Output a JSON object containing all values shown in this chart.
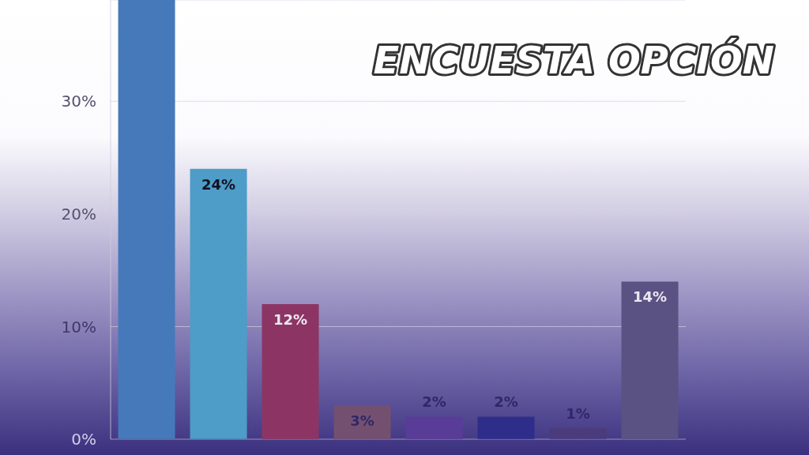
{
  "chart_data": {
    "type": "bar",
    "title": "ENCUESTA OPCIÓN",
    "categories": [
      null,
      null,
      null,
      null,
      null,
      null,
      null,
      null
    ],
    "values": [
      39,
      24,
      12,
      3,
      2,
      2,
      1,
      14
    ],
    "colors": [
      "#4679ba",
      "#4e9cc8",
      "#8c3564",
      "#745070",
      "#583c98",
      "#2e2e8a",
      "#4a3c7c",
      "#5a5282"
    ],
    "value_labels": [
      null,
      "24%",
      "12%",
      "3%",
      "2%",
      "2%",
      "1%",
      "14%"
    ],
    "ylim": [
      0,
      39
    ],
    "yticks": [
      {
        "value": 0,
        "label": "0%"
      },
      {
        "value": 10,
        "label": "10%"
      },
      {
        "value": 20,
        "label": "20%"
      },
      {
        "value": 30,
        "label": "30%"
      }
    ],
    "grid": "y"
  }
}
